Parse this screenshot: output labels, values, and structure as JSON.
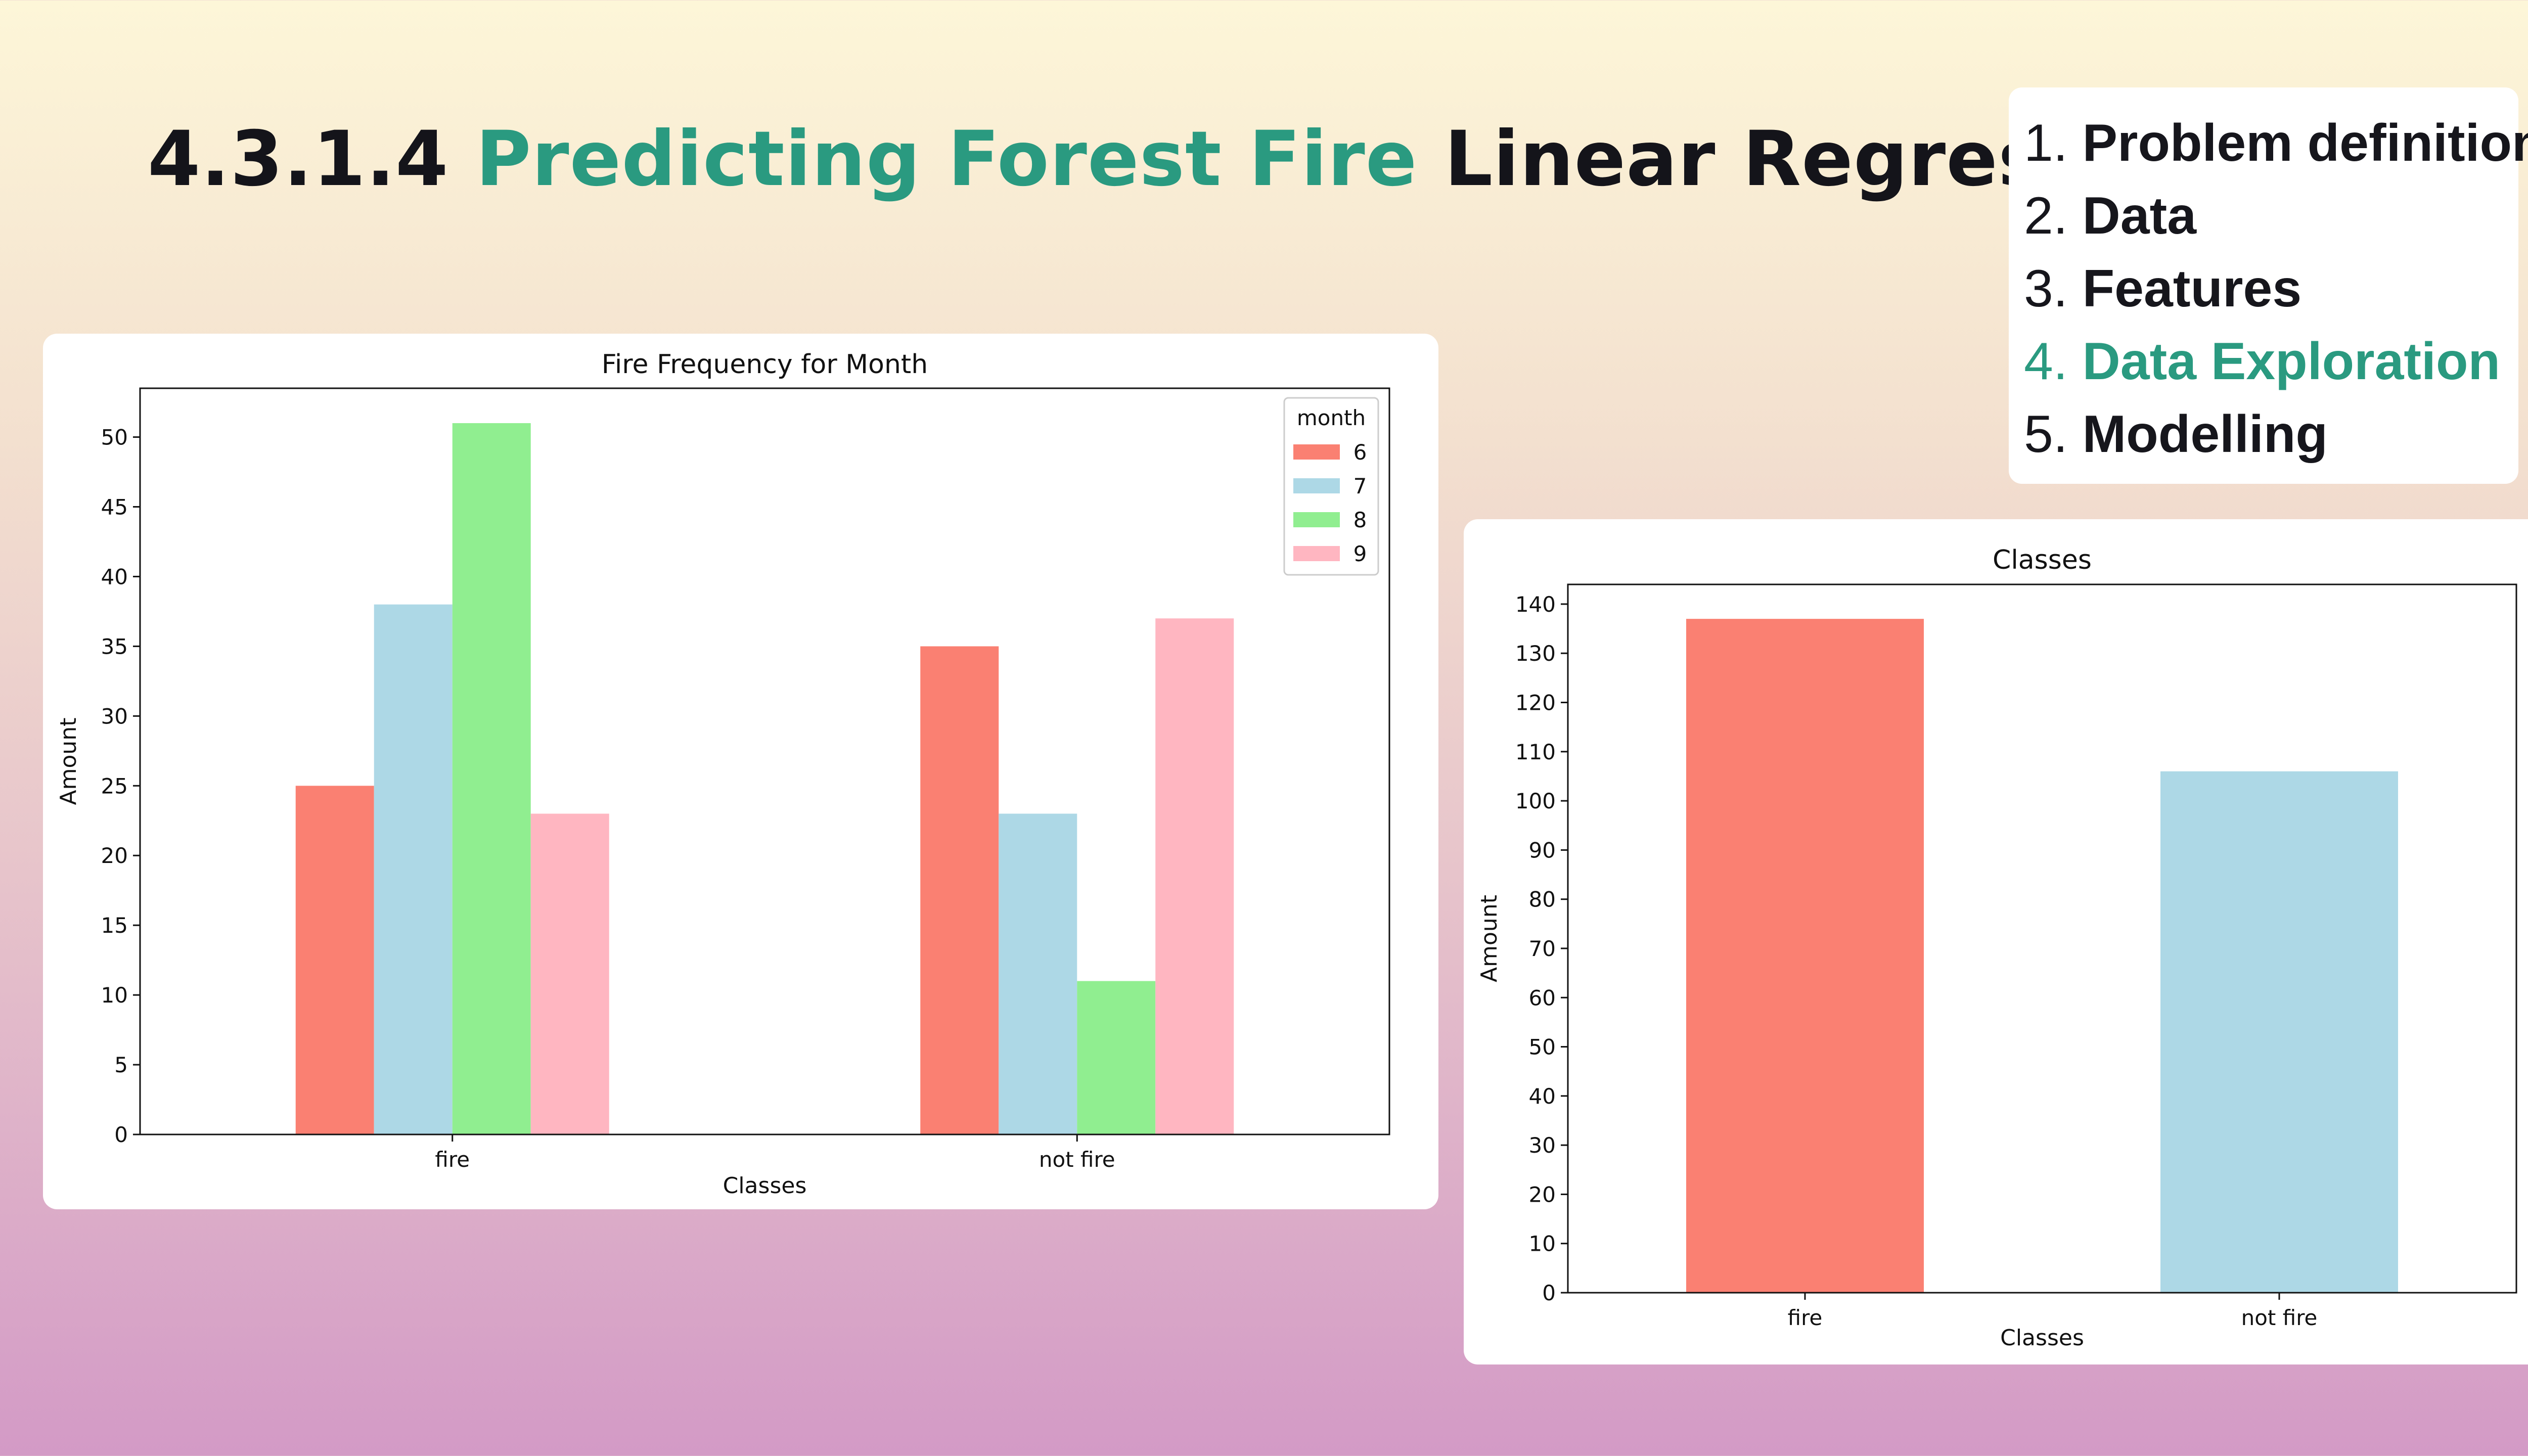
{
  "title": {
    "number": "4.3.1.4",
    "highlight": "Predicting Forest Fire",
    "rest": "Linear Regression"
  },
  "outline": [
    {
      "num": "1.",
      "label": "Problem definition",
      "active": false
    },
    {
      "num": "2.",
      "label": "Data",
      "active": false
    },
    {
      "num": "3.",
      "label": "Features",
      "active": false
    },
    {
      "num": "4.",
      "label": "Data Exploration",
      "active": true
    },
    {
      "num": "5.",
      "label": "Modelling",
      "active": false
    }
  ],
  "colors": {
    "accent": "#2a9a80",
    "salmon": "#fa8072",
    "lightblue": "#add8e6",
    "lightgreen": "#90ee90",
    "lightpink": "#ffb6c1"
  },
  "chart_data": [
    {
      "type": "bar",
      "title": "Fire Frequency for Month",
      "xlabel": "Classes",
      "ylabel": "Amount",
      "categories": [
        "fire",
        "not fire"
      ],
      "series": [
        {
          "name": "6",
          "values": [
            25,
            35
          ],
          "color": "#fa8072"
        },
        {
          "name": "7",
          "values": [
            38,
            23
          ],
          "color": "#add8e6"
        },
        {
          "name": "8",
          "values": [
            51,
            11
          ],
          "color": "#90ee90"
        },
        {
          "name": "9",
          "values": [
            23,
            37
          ],
          "color": "#ffb6c1"
        }
      ],
      "legend_title": "month",
      "legend_position": "top-right",
      "ylim": [
        0,
        53.5
      ],
      "yticks": [
        0,
        5,
        10,
        15,
        20,
        25,
        30,
        35,
        40,
        45,
        50
      ],
      "grid": false
    },
    {
      "type": "bar",
      "title": "Classes",
      "xlabel": "Classes",
      "ylabel": "Amount",
      "categories": [
        "fire",
        "not fire"
      ],
      "values": [
        137,
        106
      ],
      "colors": [
        "#fa8072",
        "#add8e6"
      ],
      "ylim": [
        0,
        144
      ],
      "yticks": [
        0,
        10,
        20,
        30,
        40,
        50,
        60,
        70,
        80,
        90,
        100,
        110,
        120,
        130,
        140
      ],
      "grid": false
    }
  ]
}
